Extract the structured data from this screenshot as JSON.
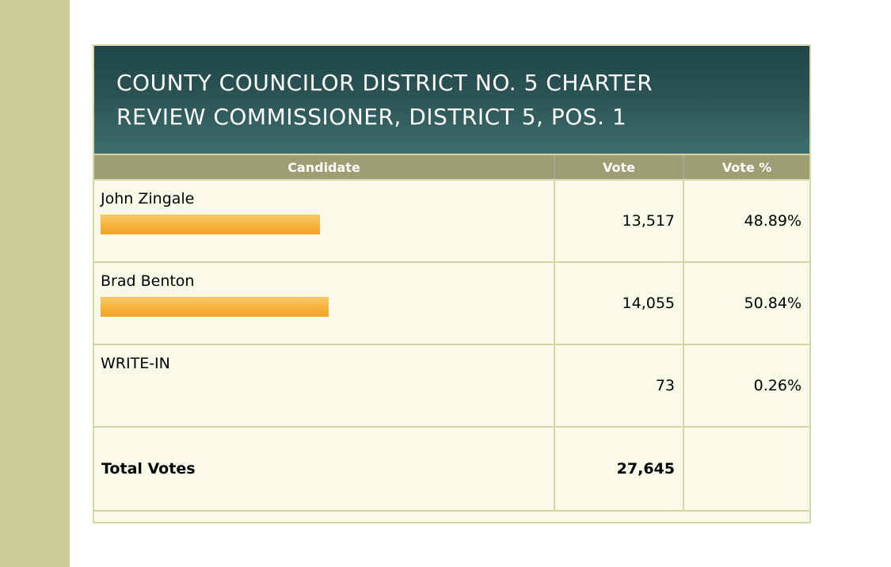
{
  "colors": {
    "page-bg": "#FFFFFF",
    "stripe": "#CCCC99",
    "table-border": "#D6D6A6",
    "cell-bg": "#FAFAE9",
    "column-header-bg": "#9C9E74",
    "column-header-separator": "#A6A699",
    "contest-header-top": "#1E4647",
    "contest-header-bottom": "#3D6E6E",
    "contest-title-color": "#FFFFFF",
    "bar-top": "#F9C965",
    "bar-bottom": "#F4A428",
    "text": "#000000"
  },
  "contest": {
    "title": "COUNTY COUNCILOR DISTRICT NO. 5 CHARTER REVIEW COMMISSIONER, DISTRICT 5, POS. 1",
    "title_lines": [
      "COUNTY COUNCILOR DISTRICT NO. 5 CHARTER",
      "REVIEW COMMISSIONER, DISTRICT 5, POS. 1"
    ]
  },
  "table": {
    "columns": [
      "Candidate",
      "Vote",
      "Vote %"
    ],
    "rows": [
      {
        "candidate": "John Zingale",
        "votes": "13,517",
        "pct": "48.89%",
        "bar_pct": 48.89,
        "bar_visible": true
      },
      {
        "candidate": "Brad Benton",
        "votes": "14,055",
        "pct": "50.84%",
        "bar_pct": 50.84,
        "bar_visible": true
      },
      {
        "candidate": "WRITE-IN",
        "votes": "73",
        "pct": "0.26%",
        "bar_pct": 0.26,
        "bar_visible": false
      }
    ],
    "total": {
      "label": "Total Votes",
      "votes": "27,645",
      "pct": ""
    }
  },
  "chart_data": {
    "type": "table",
    "title": "COUNTY COUNCILOR DISTRICT NO. 5 CHARTER REVIEW COMMISSIONER, DISTRICT 5, POS. 1",
    "columns": [
      "Candidate",
      "Vote",
      "Vote %"
    ],
    "rows": [
      [
        "John Zingale",
        13517,
        48.89
      ],
      [
        "Brad Benton",
        14055,
        50.84
      ],
      [
        "WRITE-IN",
        73,
        0.26
      ]
    ],
    "total_votes": 27645,
    "embedded_bars": {
      "type": "bar",
      "unit": "percent",
      "categories": [
        "John Zingale",
        "Brad Benton",
        "WRITE-IN"
      ],
      "values": [
        48.89,
        50.84,
        0.26
      ],
      "color": "#F4A428",
      "note": "horizontal vote-share bars inside Candidate cells; no visible bar for WRITE-IN"
    }
  }
}
